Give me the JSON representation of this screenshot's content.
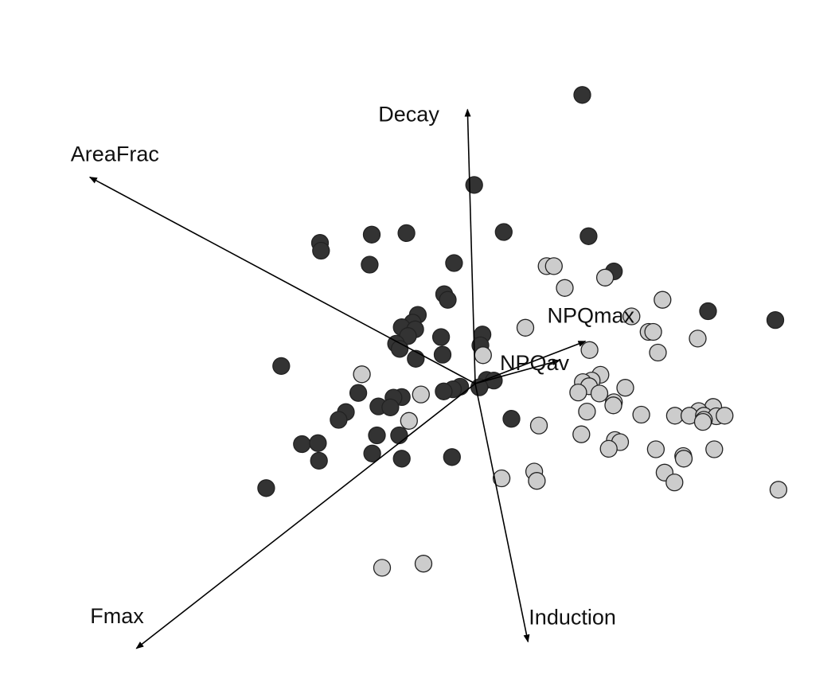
{
  "chart_data": {
    "type": "scatter",
    "title": "",
    "xlabel": "",
    "ylabel": "",
    "grid": false,
    "legend": "none",
    "vectors": [
      {
        "label": "Decay",
        "x": -0.15,
        "y": 5.3
      },
      {
        "label": "AreaFrac",
        "x": -7.45,
        "y": 3.99
      },
      {
        "label": "NPQmax",
        "x": 2.13,
        "y": 0.82
      },
      {
        "label": "NPQav",
        "x": 1.63,
        "y": 0.45
      },
      {
        "label": "Fmax",
        "x": -6.55,
        "y": -5.12
      },
      {
        "label": "Induction",
        "x": 1.02,
        "y": -4.99
      }
    ],
    "series": [
      {
        "color": "#333333",
        "points": [
          [
            2.07,
            5.58
          ],
          [
            -0.02,
            3.84
          ],
          [
            0.55,
            2.93
          ],
          [
            2.19,
            2.85
          ],
          [
            2.68,
            2.17
          ],
          [
            4.5,
            1.4
          ],
          [
            5.8,
            1.23
          ],
          [
            -3.0,
            2.72
          ],
          [
            -2.98,
            2.57
          ],
          [
            -2.0,
            2.88
          ],
          [
            -1.33,
            2.91
          ],
          [
            -2.04,
            2.3
          ],
          [
            -0.41,
            2.33
          ],
          [
            -0.6,
            1.73
          ],
          [
            -0.53,
            1.62
          ],
          [
            -1.11,
            1.33
          ],
          [
            -1.21,
            1.18
          ],
          [
            -1.42,
            1.09
          ],
          [
            -1.16,
            1.05
          ],
          [
            -1.3,
            0.92
          ],
          [
            -1.53,
            0.77
          ],
          [
            -1.46,
            0.67
          ],
          [
            -0.66,
            0.9
          ],
          [
            0.14,
            0.95
          ],
          [
            0.1,
            0.74
          ],
          [
            -0.63,
            0.56
          ],
          [
            -1.15,
            0.48
          ],
          [
            -3.75,
            0.34
          ],
          [
            0.22,
            0.07
          ],
          [
            0.36,
            0.06
          ],
          [
            0.08,
            -0.07
          ],
          [
            -0.29,
            -0.06
          ],
          [
            -0.43,
            -0.11
          ],
          [
            -0.61,
            -0.15
          ],
          [
            -1.42,
            -0.26
          ],
          [
            -1.58,
            -0.27
          ],
          [
            -2.26,
            -0.18
          ],
          [
            -1.87,
            -0.44
          ],
          [
            -1.64,
            -0.46
          ],
          [
            -2.5,
            -0.55
          ],
          [
            -2.64,
            -0.7
          ],
          [
            -1.9,
            -1.0
          ],
          [
            -1.47,
            -1.0
          ],
          [
            -3.35,
            -1.17
          ],
          [
            -3.04,
            -1.15
          ],
          [
            -1.99,
            -1.35
          ],
          [
            -3.02,
            -1.49
          ],
          [
            -1.42,
            -1.45
          ],
          [
            -0.45,
            -1.42
          ],
          [
            0.7,
            -0.68
          ],
          [
            -4.04,
            -2.02
          ]
        ]
      },
      {
        "color": "#cccccc",
        "points": [
          [
            1.38,
            2.27
          ],
          [
            1.52,
            2.27
          ],
          [
            2.51,
            2.05
          ],
          [
            1.73,
            1.85
          ],
          [
            3.62,
            1.62
          ],
          [
            3.02,
            1.3
          ],
          [
            0.97,
            1.08
          ],
          [
            3.35,
            1.0
          ],
          [
            3.44,
            1.0
          ],
          [
            4.3,
            0.87
          ],
          [
            2.21,
            0.65
          ],
          [
            3.53,
            0.6
          ],
          [
            0.15,
            0.55
          ],
          [
            -2.19,
            0.18
          ],
          [
            2.42,
            0.17
          ],
          [
            2.25,
            0.06
          ],
          [
            2.08,
            0.03
          ],
          [
            2.2,
            -0.05
          ],
          [
            2.9,
            -0.08
          ],
          [
            1.99,
            -0.17
          ],
          [
            2.4,
            -0.19
          ],
          [
            -1.05,
            -0.21
          ],
          [
            2.68,
            -0.36
          ],
          [
            2.67,
            -0.42
          ],
          [
            4.6,
            -0.45
          ],
          [
            4.32,
            -0.53
          ],
          [
            2.16,
            -0.54
          ],
          [
            3.21,
            -0.6
          ],
          [
            3.86,
            -0.62
          ],
          [
            4.14,
            -0.62
          ],
          [
            4.42,
            -0.62
          ],
          [
            4.66,
            -0.63
          ],
          [
            4.82,
            -0.62
          ],
          [
            4.42,
            -0.7
          ],
          [
            4.4,
            -0.74
          ],
          [
            -1.28,
            -0.72
          ],
          [
            1.23,
            -0.81
          ],
          [
            2.05,
            -0.98
          ],
          [
            2.7,
            -1.09
          ],
          [
            2.8,
            -1.13
          ],
          [
            2.58,
            -1.26
          ],
          [
            3.49,
            -1.27
          ],
          [
            4.62,
            -1.27
          ],
          [
            4.02,
            -1.4
          ],
          [
            4.03,
            -1.45
          ],
          [
            1.14,
            -1.7
          ],
          [
            3.66,
            -1.72
          ],
          [
            0.51,
            -1.83
          ],
          [
            1.19,
            -1.88
          ],
          [
            3.85,
            -1.91
          ],
          [
            5.86,
            -2.05
          ],
          [
            -1.8,
            -3.56
          ],
          [
            -1.0,
            -3.48
          ]
        ]
      }
    ]
  }
}
